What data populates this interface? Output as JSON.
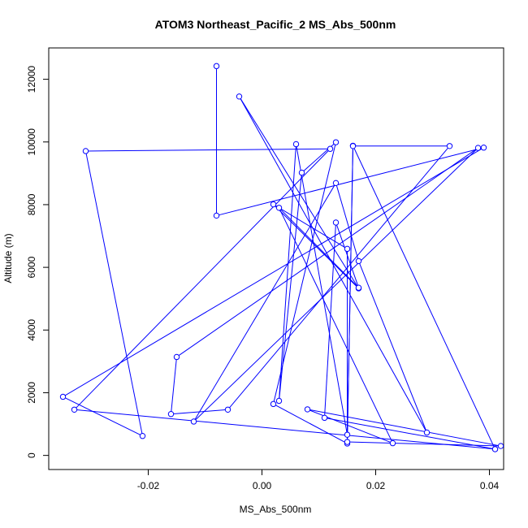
{
  "chart_data": {
    "type": "line",
    "title": "ATOM3 Northeast_Pacific_2 MS_Abs_500nm",
    "xlabel": "MS_Abs_500nm",
    "ylabel": "Altitude (m)",
    "xlim": [
      -0.0375,
      0.0425
    ],
    "ylim": [
      -450,
      13000
    ],
    "xticks": [
      -0.02,
      0.0,
      0.02,
      0.04
    ],
    "xtick_labels": [
      "-0.02",
      "0.00",
      "0.02",
      "0.04"
    ],
    "yticks": [
      0,
      2000,
      4000,
      6000,
      8000,
      10000,
      12000
    ],
    "ytick_labels": [
      "0",
      "2000",
      "4000",
      "6000",
      "8000",
      "10000",
      "12000"
    ],
    "grid": false,
    "series_color": "#0000ff",
    "points": [
      {
        "x": -0.008,
        "y": 12420
      },
      {
        "x": -0.008,
        "y": 7650
      },
      {
        "x": 0.039,
        "y": 9820
      },
      {
        "x": -0.035,
        "y": 1870
      },
      {
        "x": -0.021,
        "y": 620
      },
      {
        "x": -0.031,
        "y": 9710
      },
      {
        "x": 0.012,
        "y": 9780
      },
      {
        "x": -0.033,
        "y": 1460
      },
      {
        "x": 0.041,
        "y": 200
      },
      {
        "x": 0.016,
        "y": 9880
      },
      {
        "x": 0.015,
        "y": 380
      },
      {
        "x": 0.002,
        "y": 1640
      },
      {
        "x": 0.013,
        "y": 9990
      },
      {
        "x": 0.007,
        "y": 9020
      },
      {
        "x": 0.003,
        "y": 1740
      },
      {
        "x": 0.006,
        "y": 9930
      },
      {
        "x": 0.015,
        "y": 660
      },
      {
        "x": 0.015,
        "y": 6590
      },
      {
        "x": 0.002,
        "y": 8010
      },
      {
        "x": 0.017,
        "y": 5330
      },
      {
        "x": -0.004,
        "y": 11450
      },
      {
        "x": 0.029,
        "y": 730
      },
      {
        "x": 0.017,
        "y": 6200
      },
      {
        "x": 0.013,
        "y": 8690
      },
      {
        "x": -0.012,
        "y": 1080
      },
      {
        "x": 0.038,
        "y": 9810
      },
      {
        "x": -0.015,
        "y": 3140
      },
      {
        "x": -0.016,
        "y": 1320
      },
      {
        "x": -0.006,
        "y": 1460
      },
      {
        "x": 0.033,
        "y": 9870
      },
      {
        "x": 0.016,
        "y": 9870
      },
      {
        "x": 0.015,
        "y": 430
      },
      {
        "x": 0.042,
        "y": 300
      },
      {
        "x": 0.008,
        "y": 1470
      },
      {
        "x": 0.023,
        "y": 390
      },
      {
        "x": 0.003,
        "y": 7900
      },
      {
        "x": 0.017,
        "y": 5350
      },
      {
        "x": 0.013,
        "y": 7430
      },
      {
        "x": 0.011,
        "y": 1200
      },
      {
        "x": 0.041,
        "y": 200
      }
    ]
  }
}
